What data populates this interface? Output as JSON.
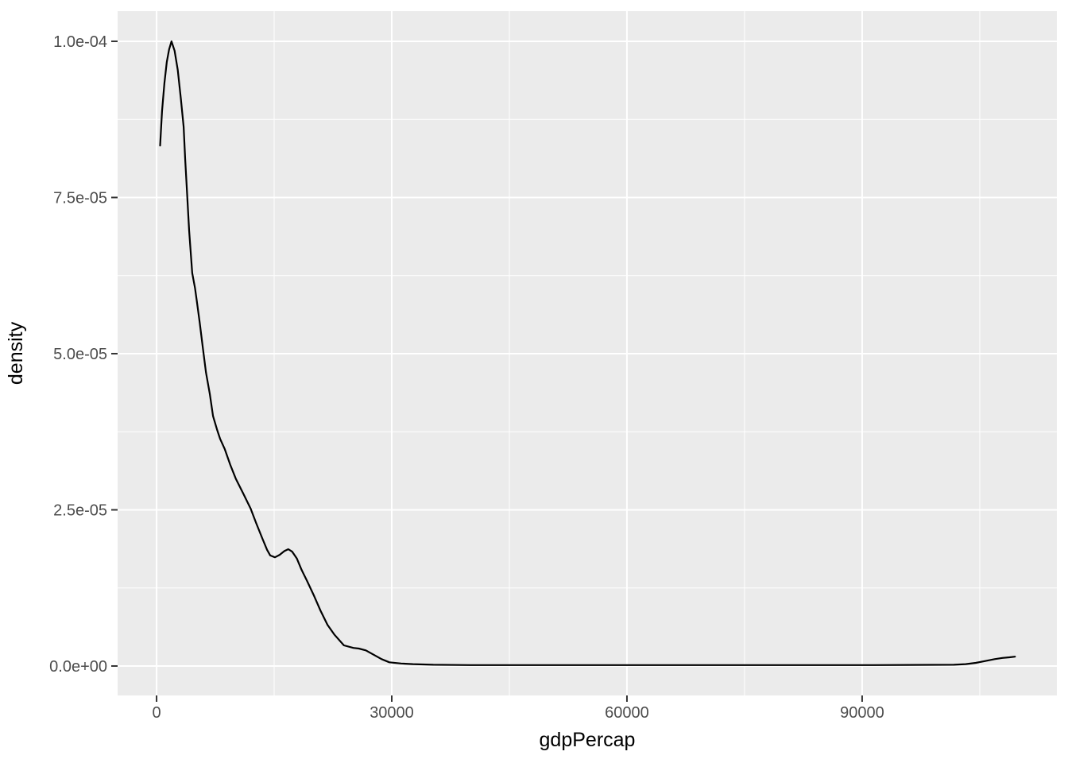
{
  "figure": {
    "background_color": "#FFFFFF",
    "panel_color": "#EBEBEB",
    "grid_color": "#FFFFFF",
    "axis_text_color": "#4D4D4D",
    "axis_title_color": "#000000",
    "tick_mark_color": "#333333",
    "line_color": "#000000"
  },
  "chart_data": {
    "type": "line",
    "subtype": "kernel-density",
    "title": "",
    "xlabel": "gdpPercap",
    "ylabel": "density",
    "grid": true,
    "legend_position": "none",
    "xlim": [
      -4970,
      114840
    ],
    "ylim": [
      -4.71e-06,
      0.00010483
    ],
    "x_major_ticks": [
      0,
      30000,
      60000,
      90000
    ],
    "x_tick_labels": [
      "0",
      "30000",
      "60000",
      "90000"
    ],
    "x_minor_ticks": [
      15000,
      45000,
      75000,
      105000
    ],
    "y_major_ticks": [
      0,
      2.5e-05,
      5e-05,
      7.5e-05,
      0.0001
    ],
    "y_tick_labels": [
      "0.0e+00",
      "2.5e-05",
      "5.0e-05",
      "7.5e-05",
      "1.0e-04"
    ],
    "y_minor_ticks": [
      1.25e-05,
      3.75e-05,
      6.25e-05,
      8.75e-05
    ],
    "series": [
      {
        "name": "density of gdpPercap",
        "points": [
          [
            450,
            8.33e-05
          ],
          [
            700,
            8.88e-05
          ],
          [
            1000,
            9.33e-05
          ],
          [
            1300,
            9.67e-05
          ],
          [
            1600,
            9.87e-05
          ],
          [
            1900,
            0.0001
          ],
          [
            2300,
            9.85e-05
          ],
          [
            2700,
            9.54e-05
          ],
          [
            3100,
            9.08e-05
          ],
          [
            3450,
            8.63e-05
          ],
          [
            3650,
            8.12e-05
          ],
          [
            3900,
            7.55e-05
          ],
          [
            4150,
            6.97e-05
          ],
          [
            4550,
            6.29e-05
          ],
          [
            4900,
            6.05e-05
          ],
          [
            5150,
            5.83e-05
          ],
          [
            5500,
            5.5e-05
          ],
          [
            5900,
            5.1e-05
          ],
          [
            6300,
            4.7e-05
          ],
          [
            6800,
            4.35e-05
          ],
          [
            7200,
            4e-05
          ],
          [
            7700,
            3.79e-05
          ],
          [
            8100,
            3.64e-05
          ],
          [
            8700,
            3.47e-05
          ],
          [
            9400,
            3.22e-05
          ],
          [
            10100,
            3e-05
          ],
          [
            11100,
            2.75e-05
          ],
          [
            12000,
            2.52e-05
          ],
          [
            12700,
            2.29e-05
          ],
          [
            13500,
            2.04e-05
          ],
          [
            14100,
            1.86e-05
          ],
          [
            14500,
            1.77e-05
          ],
          [
            15100,
            1.74e-05
          ],
          [
            15700,
            1.78e-05
          ],
          [
            16300,
            1.84e-05
          ],
          [
            16800,
            1.87e-05
          ],
          [
            17300,
            1.83e-05
          ],
          [
            17900,
            1.72e-05
          ],
          [
            18500,
            1.54e-05
          ],
          [
            19200,
            1.36e-05
          ],
          [
            20100,
            1.12e-05
          ],
          [
            20900,
            8.9e-06
          ],
          [
            21800,
            6.6e-06
          ],
          [
            22700,
            5e-06
          ],
          [
            23900,
            3.3e-06
          ],
          [
            25100,
            2.9e-06
          ],
          [
            25800,
            2.8e-06
          ],
          [
            26700,
            2.5e-06
          ],
          [
            27700,
            1.8e-06
          ],
          [
            28700,
            1.1e-06
          ],
          [
            29700,
            6e-07
          ],
          [
            31200,
            4e-07
          ],
          [
            32700,
            3e-07
          ],
          [
            35300,
            2e-07
          ],
          [
            40000,
            1.5e-07
          ],
          [
            51000,
            1.5e-07
          ],
          [
            61000,
            1.5e-07
          ],
          [
            71000,
            1.5e-07
          ],
          [
            81000,
            1.5e-07
          ],
          [
            91500,
            1.5e-07
          ],
          [
            101700,
            2e-07
          ],
          [
            103200,
            3e-07
          ],
          [
            104500,
            5e-07
          ],
          [
            105700,
            8e-07
          ],
          [
            106900,
            1.1e-06
          ],
          [
            107900,
            1.3e-06
          ],
          [
            108800,
            1.4e-06
          ],
          [
            109500,
            1.5e-06
          ]
        ]
      }
    ]
  }
}
